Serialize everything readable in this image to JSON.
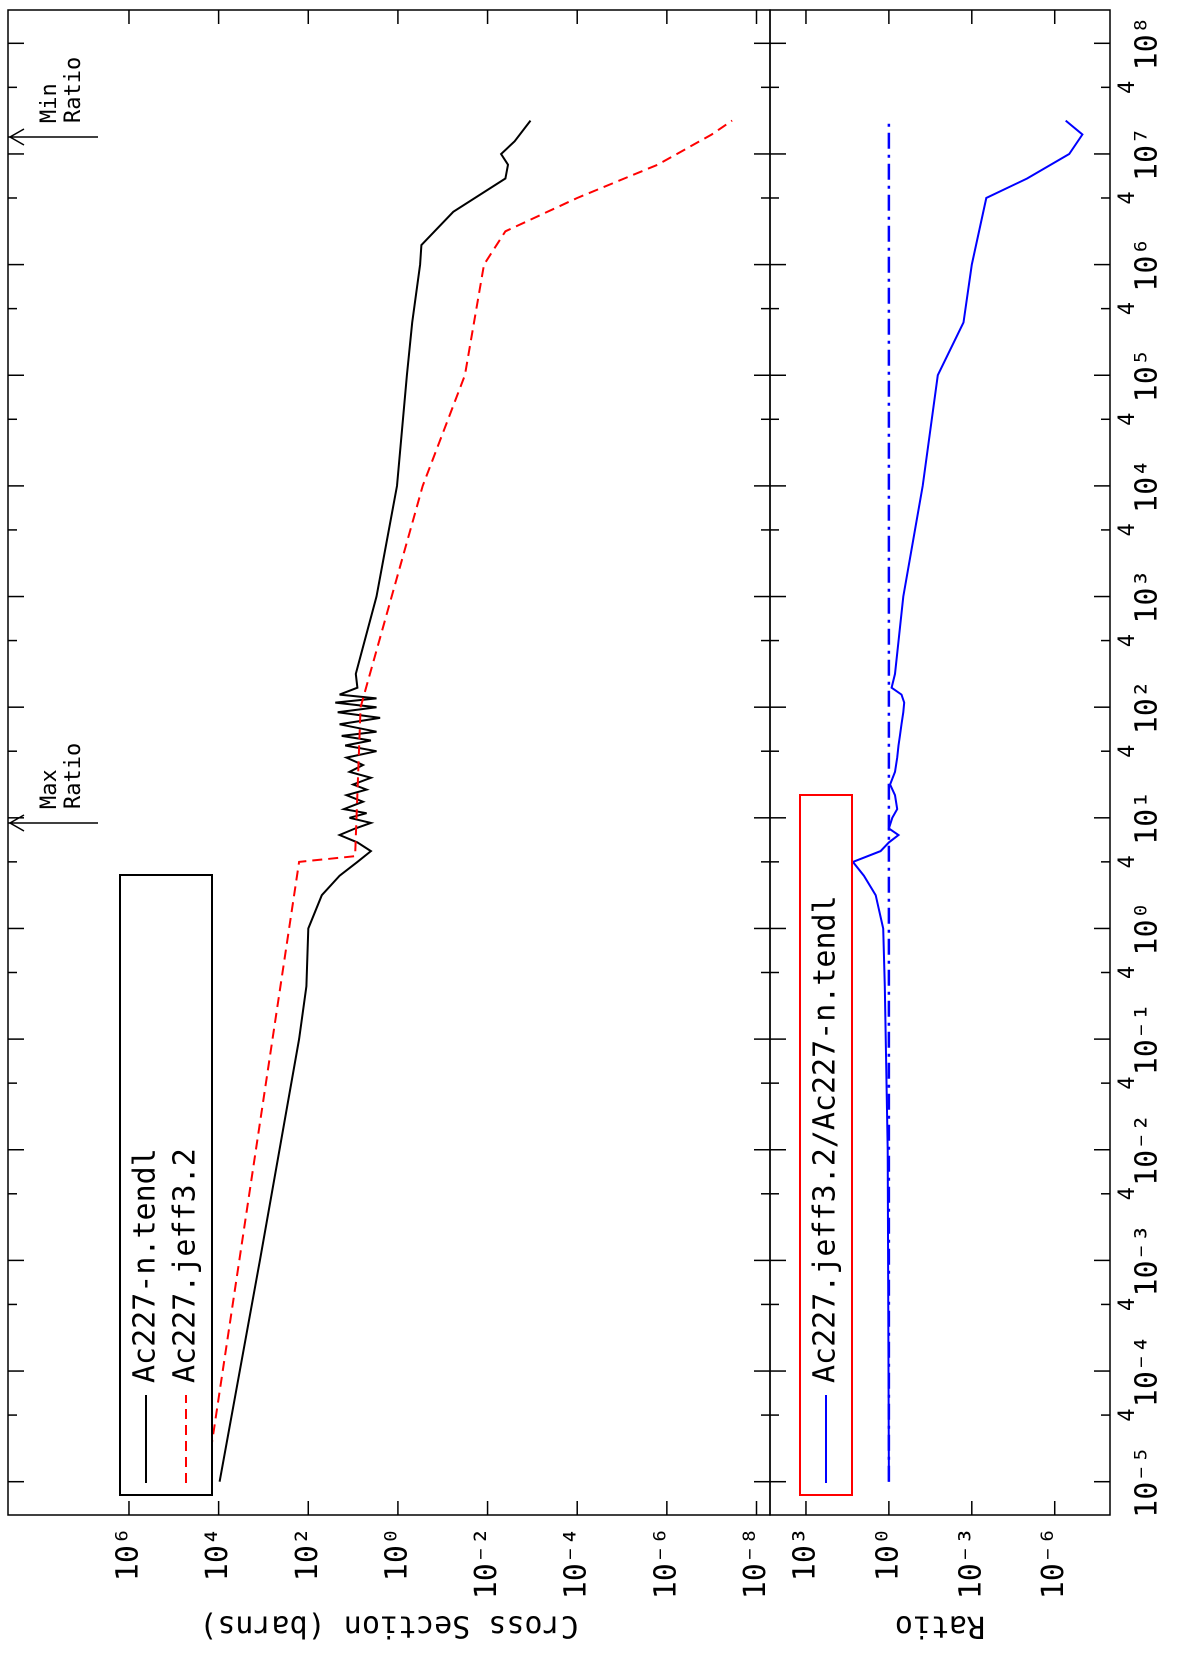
{
  "chart_data": [
    {
      "type": "line",
      "log_x": true,
      "log_y": true,
      "y_label": "Cross Section (barns)",
      "xlim": [
        5e-06,
        200000000.0
      ],
      "ylim": [
        5e-09,
        500000000.0
      ],
      "yticks": [
        {
          "value": 1000000.0,
          "label": "10⁶"
        },
        {
          "value": 10000.0,
          "label": "10⁴"
        },
        {
          "value": 100,
          "label": "10²"
        },
        {
          "value": 1,
          "label": "10⁰"
        },
        {
          "value": 0.01,
          "label": "10⁻²"
        },
        {
          "value": 0.0001,
          "label": "10⁻⁴"
        },
        {
          "value": 1e-06,
          "label": "10⁻⁶"
        },
        {
          "value": 1e-08,
          "label": "10⁻⁸"
        }
      ],
      "legend_border_color": "#000000",
      "series": [
        {
          "name": "Ac227-n.tendl",
          "color": "#000000",
          "line_style": "solid",
          "x": [
            1e-05,
            0.001,
            0.1,
            0.3,
            1,
            2,
            3,
            4,
            5,
            6,
            7,
            8,
            9,
            10,
            11,
            12,
            14,
            16,
            18,
            20,
            23,
            26,
            30,
            35,
            40,
            45,
            50,
            55,
            60,
            70,
            80,
            90,
            100,
            110,
            120,
            130,
            150,
            200,
            1000,
            10000,
            100000,
            300000,
            1000000,
            1500000,
            3000000,
            6000000,
            8000000,
            10000000,
            13000000,
            20000000
          ],
          "values": [
            9500,
            1200,
            160,
            110,
            100,
            50,
            20,
            8,
            4,
            8,
            20,
            9,
            4,
            12,
            5,
            16,
            6,
            14,
            5,
            10,
            4,
            12,
            6,
            14,
            3,
            15,
            4,
            18,
            3,
            20,
            2.5,
            22,
            3,
            25,
            3,
            20,
            8,
            8.7,
            3,
            1.05,
            0.63,
            0.48,
            0.32,
            0.3,
            0.058,
            0.004,
            0.0035,
            0.005,
            0.0025,
            0.0011
          ]
        },
        {
          "name": "Ac227.jeff3.2",
          "color": "#ff0000",
          "line_style": "dashed",
          "x": [
            1e-05,
            4,
            4.5,
            100,
            10000,
            100000,
            1000000,
            2000000,
            4000000,
            8000000,
            15000000,
            20000000
          ],
          "values": [
            19000,
            160,
            9,
            6.8,
            0.28,
            0.032,
            0.012,
            0.004,
            0.0001,
            1.6e-06,
            1e-07,
            3.5e-08
          ]
        }
      ],
      "annotations": [
        {
          "lines": [
            "Max",
            "Ratio"
          ]
        },
        {
          "lines": [
            "Min",
            "Ratio"
          ]
        }
      ]
    },
    {
      "type": "line",
      "log_x": true,
      "log_y": true,
      "y_label": "Ratio",
      "xlim": [
        5e-06,
        200000000.0
      ],
      "ylim": [
        1e-08,
        20000
      ],
      "xticks": [
        {
          "value": 1e-05,
          "label": "10⁻⁵"
        },
        {
          "value": 4e-05,
          "label": "4"
        },
        {
          "value": 0.0001,
          "label": "10⁻⁴"
        },
        {
          "value": 0.0004,
          "label": "4"
        },
        {
          "value": 0.001,
          "label": "10⁻³"
        },
        {
          "value": 0.004,
          "label": "4"
        },
        {
          "value": 0.01,
          "label": "10⁻²"
        },
        {
          "value": 0.04,
          "label": "4"
        },
        {
          "value": 0.1,
          "label": "10⁻¹"
        },
        {
          "value": 0.4,
          "label": "4"
        },
        {
          "value": 1,
          "label": "10⁰"
        },
        {
          "value": 4,
          "label": "4"
        },
        {
          "value": 10,
          "label": "10¹"
        },
        {
          "value": 40,
          "label": "4"
        },
        {
          "value": 100,
          "label": "10²"
        },
        {
          "value": 400,
          "label": "4"
        },
        {
          "value": 1000,
          "label": "10³"
        },
        {
          "value": 4000,
          "label": "4"
        },
        {
          "value": 10000,
          "label": "10⁴"
        },
        {
          "value": 40000,
          "label": "4"
        },
        {
          "value": 100000,
          "label": "10⁵"
        },
        {
          "value": 400000,
          "label": "4"
        },
        {
          "value": 1000000,
          "label": "10⁶"
        },
        {
          "value": 4000000,
          "label": "4"
        },
        {
          "value": 10000000,
          "label": "10⁷"
        },
        {
          "value": 40000000,
          "label": "4"
        },
        {
          "value": 100000000,
          "label": "10⁸"
        }
      ],
      "yticks": [
        {
          "value": 1000,
          "label": "10³"
        },
        {
          "value": 1,
          "label": "10⁰"
        },
        {
          "value": 0.001,
          "label": "10⁻³"
        },
        {
          "value": 1e-06,
          "label": "10⁻⁶"
        }
      ],
      "legend_border_color": "#ff0000",
      "reference": 1,
      "reference_color": "#0000ff",
      "reference_style": "dashdot",
      "series": [
        {
          "name": "Ac227.jeff3.2/Ac227-n.tendl",
          "color": "#0000ff",
          "line_style": "solid",
          "x": [
            1e-05,
            0.01,
            0.3,
            1,
            2,
            3,
            4,
            5,
            6,
            7,
            8,
            10,
            12,
            16,
            20,
            26,
            35,
            45,
            55,
            70,
            90,
            110,
            130,
            150,
            200,
            1000,
            10000,
            100000,
            300000,
            1000000,
            4000000,
            6000000,
            10000000,
            15000000,
            20000000
          ],
          "values": [
            1,
            1.1,
            1.4,
            1.6,
            3,
            8,
            20,
            2,
            1,
            0.45,
            1,
            0.75,
            0.5,
            0.6,
            0.9,
            0.6,
            0.5,
            0.45,
            0.4,
            0.35,
            0.3,
            0.28,
            0.35,
            0.8,
            0.6,
            0.3,
            0.06,
            0.017,
            0.002,
            0.001,
            0.0003,
            1e-05,
            3e-07,
            1e-07,
            4e-07
          ]
        }
      ]
    }
  ]
}
